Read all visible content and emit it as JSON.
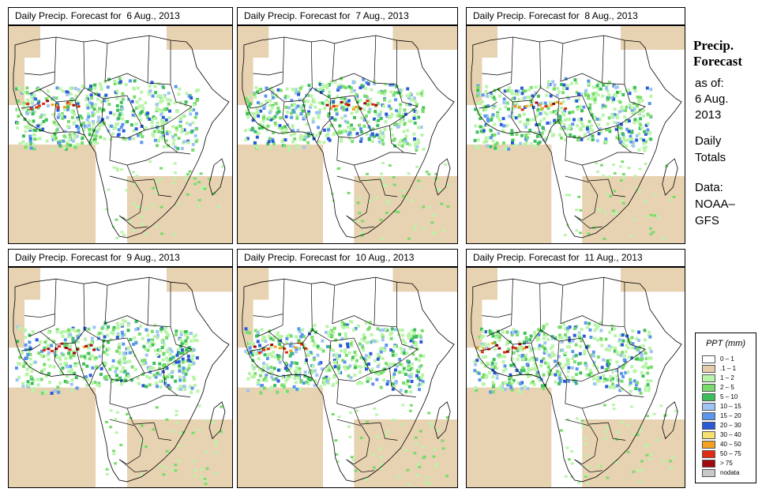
{
  "panels": [
    {
      "title": "Daily Precip. Forecast for  6 Aug., 2013"
    },
    {
      "title": "Daily Precip. Forecast for  7 Aug., 2013"
    },
    {
      "title": "Daily Precip. Forecast for  8 Aug., 2013"
    },
    {
      "title": "Daily Precip. Forecast for  9 Aug., 2013"
    },
    {
      "title": "Daily Precip. Forecast for  10 Aug., 2013"
    },
    {
      "title": "Daily Precip. Forecast for  11 Aug., 2013"
    }
  ],
  "sidebar": {
    "heading_line1": "Precip.",
    "heading_line2": "Forecast",
    "asof_line1": "as of:",
    "asof_line2": "6 Aug.",
    "asof_line3": "2013",
    "daily_line1": "Daily",
    "daily_line2": "Totals",
    "data_line1": "Data:",
    "data_line2": "NOAA–",
    "data_line3": "GFS"
  },
  "legend": {
    "title": "PPT (mm)",
    "items": [
      {
        "label": "0 – 1",
        "color": "#ffffff"
      },
      {
        "label": ".1 – 1",
        "color": "#e4cda8"
      },
      {
        "label": "1 – 2",
        "color": "#b8f5a8"
      },
      {
        "label": "2 – 5",
        "color": "#78dc6c"
      },
      {
        "label": "5 – 10",
        "color": "#3cbf5a"
      },
      {
        "label": "10 – 15",
        "color": "#9ec4f4"
      },
      {
        "label": "15 – 20",
        "color": "#5a96ec"
      },
      {
        "label": "20 – 30",
        "color": "#2a5ad8"
      },
      {
        "label": "30 – 40",
        "color": "#f5e070"
      },
      {
        "label": "40 – 50",
        "color": "#f5a020"
      },
      {
        "label": "50 – 75",
        "color": "#e02a14"
      },
      {
        "label": "> 75",
        "color": "#a00810"
      },
      {
        "label": "nodata",
        "color": "#c8c8c8"
      }
    ]
  }
}
